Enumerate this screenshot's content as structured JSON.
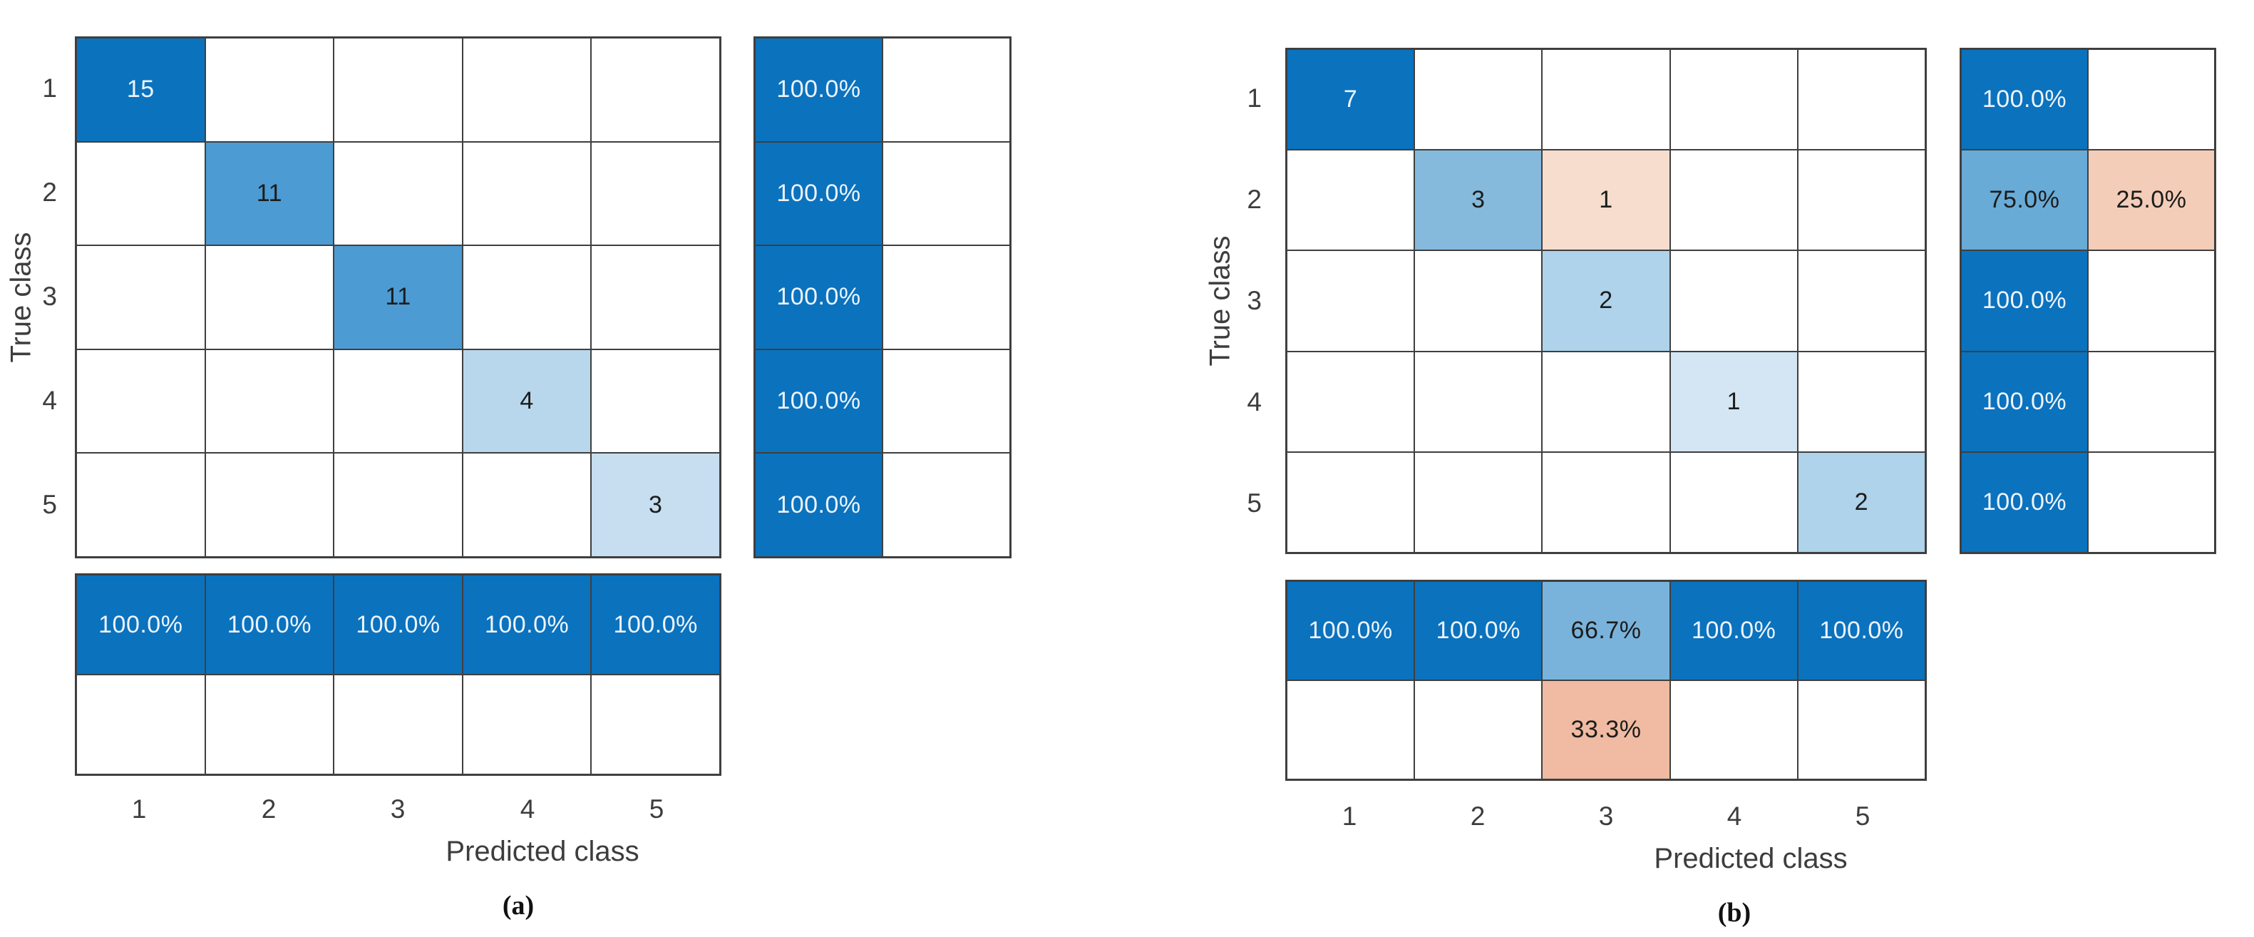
{
  "palette": {
    "dark_blue": "#0b72be",
    "medium_blue": "#4c9bd2",
    "light_blue": "#b9d7ec",
    "peach": "#f7ddcd",
    "salmon": "#f0bba2",
    "grid_line": "#3f3f3f",
    "white_text": "#edf4fb",
    "dark_text": "#1c1c1c"
  },
  "charts": [
    {
      "caption": "(a)",
      "x_label": "Predicted class",
      "y_label": "True class",
      "x_ticks": [
        "1",
        "2",
        "3",
        "4",
        "5"
      ],
      "y_ticks": [
        "1",
        "2",
        "3",
        "4",
        "5"
      ],
      "matrix": [
        [
          {
            "v": "15",
            "bg": "#0b72be",
            "fg": "#edf4fb"
          },
          {
            "v": "",
            "bg": "#ffffff"
          },
          {
            "v": "",
            "bg": "#ffffff"
          },
          {
            "v": "",
            "bg": "#ffffff"
          },
          {
            "v": "",
            "bg": "#ffffff"
          }
        ],
        [
          {
            "v": "",
            "bg": "#ffffff"
          },
          {
            "v": "11",
            "bg": "#4c9bd2",
            "fg": "#1c1c1c"
          },
          {
            "v": "",
            "bg": "#ffffff"
          },
          {
            "v": "",
            "bg": "#ffffff"
          },
          {
            "v": "",
            "bg": "#ffffff"
          }
        ],
        [
          {
            "v": "",
            "bg": "#ffffff"
          },
          {
            "v": "",
            "bg": "#ffffff"
          },
          {
            "v": "11",
            "bg": "#4c9bd2",
            "fg": "#1c1c1c"
          },
          {
            "v": "",
            "bg": "#ffffff"
          },
          {
            "v": "",
            "bg": "#ffffff"
          }
        ],
        [
          {
            "v": "",
            "bg": "#ffffff"
          },
          {
            "v": "",
            "bg": "#ffffff"
          },
          {
            "v": "",
            "bg": "#ffffff"
          },
          {
            "v": "4",
            "bg": "#b9d7ec",
            "fg": "#1c1c1c"
          },
          {
            "v": "",
            "bg": "#ffffff"
          }
        ],
        [
          {
            "v": "",
            "bg": "#ffffff"
          },
          {
            "v": "",
            "bg": "#ffffff"
          },
          {
            "v": "",
            "bg": "#ffffff"
          },
          {
            "v": "",
            "bg": "#ffffff"
          },
          {
            "v": "3",
            "bg": "#c6def0",
            "fg": "#1c1c1c"
          }
        ]
      ],
      "row_summary": [
        [
          {
            "v": "100.0%",
            "bg": "#0b72be",
            "fg": "#edf4fb"
          },
          {
            "v": "",
            "bg": "#ffffff"
          }
        ],
        [
          {
            "v": "100.0%",
            "bg": "#0b72be",
            "fg": "#edf4fb"
          },
          {
            "v": "",
            "bg": "#ffffff"
          }
        ],
        [
          {
            "v": "100.0%",
            "bg": "#0b72be",
            "fg": "#edf4fb"
          },
          {
            "v": "",
            "bg": "#ffffff"
          }
        ],
        [
          {
            "v": "100.0%",
            "bg": "#0b72be",
            "fg": "#edf4fb"
          },
          {
            "v": "",
            "bg": "#ffffff"
          }
        ],
        [
          {
            "v": "100.0%",
            "bg": "#0b72be",
            "fg": "#edf4fb"
          },
          {
            "v": "",
            "bg": "#ffffff"
          }
        ]
      ],
      "col_summary": [
        [
          {
            "v": "100.0%",
            "bg": "#0b72be",
            "fg": "#edf4fb"
          },
          {
            "v": "100.0%",
            "bg": "#0b72be",
            "fg": "#edf4fb"
          },
          {
            "v": "100.0%",
            "bg": "#0b72be",
            "fg": "#edf4fb"
          },
          {
            "v": "100.0%",
            "bg": "#0b72be",
            "fg": "#edf4fb"
          },
          {
            "v": "100.0%",
            "bg": "#0b72be",
            "fg": "#edf4fb"
          }
        ],
        [
          {
            "v": "",
            "bg": "#ffffff"
          },
          {
            "v": "",
            "bg": "#ffffff"
          },
          {
            "v": "",
            "bg": "#ffffff"
          },
          {
            "v": "",
            "bg": "#ffffff"
          },
          {
            "v": "",
            "bg": "#ffffff"
          }
        ]
      ]
    },
    {
      "caption": "(b)",
      "x_label": "Predicted class",
      "y_label": "True class",
      "x_ticks": [
        "1",
        "2",
        "3",
        "4",
        "5"
      ],
      "y_ticks": [
        "1",
        "2",
        "3",
        "4",
        "5"
      ],
      "matrix": [
        [
          {
            "v": "7",
            "bg": "#0b72be",
            "fg": "#edf4fb"
          },
          {
            "v": "",
            "bg": "#ffffff"
          },
          {
            "v": "",
            "bg": "#ffffff"
          },
          {
            "v": "",
            "bg": "#ffffff"
          },
          {
            "v": "",
            "bg": "#ffffff"
          }
        ],
        [
          {
            "v": "",
            "bg": "#ffffff"
          },
          {
            "v": "3",
            "bg": "#85badd",
            "fg": "#1c1c1c"
          },
          {
            "v": "1",
            "bg": "#f7ddcd",
            "fg": "#1c1c1c"
          },
          {
            "v": "",
            "bg": "#ffffff"
          },
          {
            "v": "",
            "bg": "#ffffff"
          }
        ],
        [
          {
            "v": "",
            "bg": "#ffffff"
          },
          {
            "v": "",
            "bg": "#ffffff"
          },
          {
            "v": "2",
            "bg": "#aed3ea",
            "fg": "#1c1c1c"
          },
          {
            "v": "",
            "bg": "#ffffff"
          },
          {
            "v": "",
            "bg": "#ffffff"
          }
        ],
        [
          {
            "v": "",
            "bg": "#ffffff"
          },
          {
            "v": "",
            "bg": "#ffffff"
          },
          {
            "v": "",
            "bg": "#ffffff"
          },
          {
            "v": "1",
            "bg": "#d4e6f4",
            "fg": "#1c1c1c"
          },
          {
            "v": "",
            "bg": "#ffffff"
          }
        ],
        [
          {
            "v": "",
            "bg": "#ffffff"
          },
          {
            "v": "",
            "bg": "#ffffff"
          },
          {
            "v": "",
            "bg": "#ffffff"
          },
          {
            "v": "",
            "bg": "#ffffff"
          },
          {
            "v": "2",
            "bg": "#aed3ea",
            "fg": "#1c1c1c"
          }
        ]
      ],
      "row_summary": [
        [
          {
            "v": "100.0%",
            "bg": "#0b72be",
            "fg": "#edf4fb"
          },
          {
            "v": "",
            "bg": "#ffffff"
          }
        ],
        [
          {
            "v": "75.0%",
            "bg": "#68abd7",
            "fg": "#1c1c1c"
          },
          {
            "v": "25.0%",
            "bg": "#f3cdb8",
            "fg": "#1c1c1c"
          }
        ],
        [
          {
            "v": "100.0%",
            "bg": "#0b72be",
            "fg": "#edf4fb"
          },
          {
            "v": "",
            "bg": "#ffffff"
          }
        ],
        [
          {
            "v": "100.0%",
            "bg": "#0b72be",
            "fg": "#edf4fb"
          },
          {
            "v": "",
            "bg": "#ffffff"
          }
        ],
        [
          {
            "v": "100.0%",
            "bg": "#0b72be",
            "fg": "#edf4fb"
          },
          {
            "v": "",
            "bg": "#ffffff"
          }
        ]
      ],
      "col_summary": [
        [
          {
            "v": "100.0%",
            "bg": "#0b72be",
            "fg": "#edf4fb"
          },
          {
            "v": "100.0%",
            "bg": "#0b72be",
            "fg": "#edf4fb"
          },
          {
            "v": "66.7%",
            "bg": "#79b3db",
            "fg": "#1c1c1c"
          },
          {
            "v": "100.0%",
            "bg": "#0b72be",
            "fg": "#edf4fb"
          },
          {
            "v": "100.0%",
            "bg": "#0b72be",
            "fg": "#edf4fb"
          }
        ],
        [
          {
            "v": "",
            "bg": "#ffffff"
          },
          {
            "v": "",
            "bg": "#ffffff"
          },
          {
            "v": "33.3%",
            "bg": "#f0bba2",
            "fg": "#1c1c1c"
          },
          {
            "v": "",
            "bg": "#ffffff"
          },
          {
            "v": "",
            "bg": "#ffffff"
          }
        ]
      ]
    }
  ],
  "chart_data": [
    {
      "type": "heatmap",
      "subtype": "confusion-matrix",
      "caption": "(a)",
      "xlabel": "Predicted class",
      "ylabel": "True class",
      "classes": [
        "1",
        "2",
        "3",
        "4",
        "5"
      ],
      "matrix": [
        [
          15,
          0,
          0,
          0,
          0
        ],
        [
          0,
          11,
          0,
          0,
          0
        ],
        [
          0,
          0,
          11,
          0,
          0
        ],
        [
          0,
          0,
          0,
          4,
          0
        ],
        [
          0,
          0,
          0,
          0,
          3
        ]
      ],
      "row_summary_pct": [
        [
          100.0,
          null
        ],
        [
          100.0,
          null
        ],
        [
          100.0,
          null
        ],
        [
          100.0,
          null
        ],
        [
          100.0,
          null
        ]
      ],
      "col_summary_pct": [
        [
          100.0,
          100.0,
          100.0,
          100.0,
          100.0
        ],
        [
          null,
          null,
          null,
          null,
          null
        ]
      ]
    },
    {
      "type": "heatmap",
      "subtype": "confusion-matrix",
      "caption": "(b)",
      "xlabel": "Predicted class",
      "ylabel": "True class",
      "classes": [
        "1",
        "2",
        "3",
        "4",
        "5"
      ],
      "matrix": [
        [
          7,
          0,
          0,
          0,
          0
        ],
        [
          0,
          3,
          1,
          0,
          0
        ],
        [
          0,
          0,
          2,
          0,
          0
        ],
        [
          0,
          0,
          0,
          1,
          0
        ],
        [
          0,
          0,
          0,
          0,
          2
        ]
      ],
      "row_summary_pct": [
        [
          100.0,
          null
        ],
        [
          75.0,
          25.0
        ],
        [
          100.0,
          null
        ],
        [
          100.0,
          null
        ],
        [
          100.0,
          null
        ]
      ],
      "col_summary_pct": [
        [
          100.0,
          100.0,
          66.7,
          100.0,
          100.0
        ],
        [
          null,
          null,
          33.3,
          null,
          null
        ]
      ]
    }
  ]
}
